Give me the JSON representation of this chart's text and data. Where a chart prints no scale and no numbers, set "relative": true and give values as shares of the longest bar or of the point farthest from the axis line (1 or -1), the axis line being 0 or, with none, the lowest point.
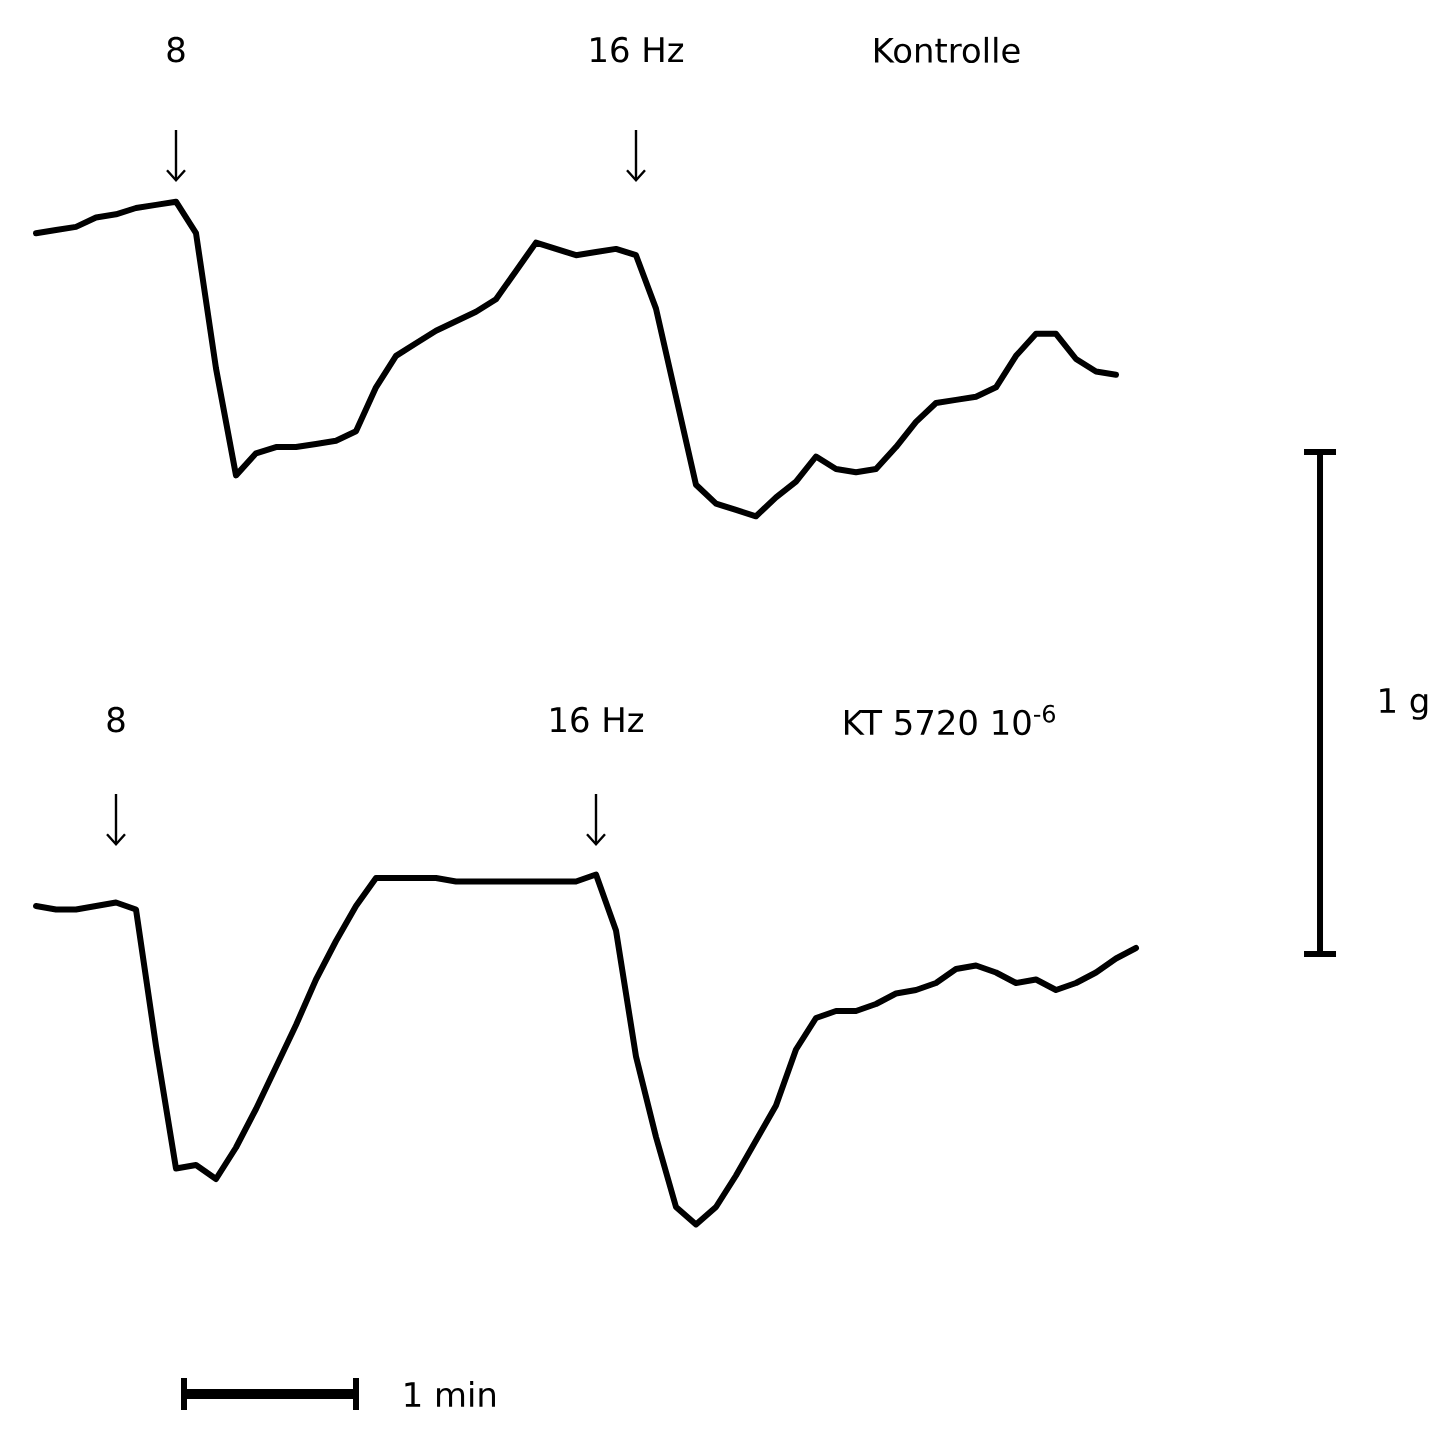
{
  "chart_data": [
    {
      "type": "line",
      "title": "Kontrolle",
      "relative": true,
      "color": "#000000",
      "categories": [
        null,
        null,
        null,
        null,
        null,
        null,
        null,
        null,
        null,
        null,
        null,
        null,
        null,
        null,
        null,
        null,
        null,
        null,
        null,
        null,
        null,
        null,
        null,
        null,
        null,
        null,
        null,
        null,
        null,
        null,
        null,
        null,
        null,
        null,
        null,
        null,
        null,
        null,
        null,
        null,
        null,
        null,
        null,
        null,
        null,
        null,
        null,
        null,
        null,
        null,
        null,
        null,
        null,
        null,
        null
      ],
      "values": [
        0.9,
        0.91,
        0.92,
        0.95,
        0.96,
        0.98,
        0.99,
        1.0,
        0.9,
        0.47,
        0.13,
        0.2,
        0.22,
        0.22,
        0.23,
        0.24,
        0.27,
        0.41,
        0.51,
        0.55,
        0.59,
        0.62,
        0.65,
        0.69,
        0.78,
        0.87,
        0.85,
        0.83,
        0.84,
        0.85,
        0.83,
        0.66,
        0.38,
        0.1,
        0.04,
        0.02,
        0,
        0.06,
        0.11,
        0.19,
        0.15,
        0.14,
        0.15,
        0.22,
        0.3,
        0.36,
        0.37,
        0.38,
        0.41,
        0.51,
        0.58,
        0.58,
        0.5,
        0.46,
        0.45
      ],
      "annotations": [
        "8",
        "16 Hz",
        "1 g"
      ]
    },
    {
      "type": "line",
      "title": "KT 5720 10$^{-6}$",
      "relative": true,
      "color": "#000000",
      "categories": [
        null,
        null,
        null,
        null,
        null,
        null,
        null,
        null,
        null,
        null,
        null,
        null,
        null,
        null,
        null,
        null,
        null,
        null,
        null,
        null,
        null,
        null,
        null,
        null,
        null,
        null,
        null,
        null,
        null,
        null,
        null,
        null,
        null,
        null,
        null,
        null,
        null,
        null,
        null,
        null,
        null,
        null,
        null,
        null,
        null,
        null,
        null,
        null,
        null,
        null,
        null,
        null,
        null,
        null,
        null,
        null
      ],
      "values": [
        0.91,
        0.9,
        0.9,
        0.91,
        0.92,
        0.9,
        0.51,
        0.16,
        0.17,
        0.13,
        0.22,
        0.33,
        0.45,
        0.57,
        0.7,
        0.81,
        0.91,
        0.99,
        0.99,
        0.99,
        0.99,
        0.98,
        0.98,
        0.98,
        0.98,
        0.98,
        0.98,
        0.98,
        1.0,
        0.84,
        0.48,
        0.25,
        0.05,
        0,
        0.05,
        0.14,
        0.24,
        0.34,
        0.5,
        0.59,
        0.61,
        0.61,
        0.63,
        0.66,
        0.67,
        0.69,
        0.73,
        0.74,
        0.72,
        0.69,
        0.7,
        0.67,
        0.69,
        0.72,
        0.76,
        0.79
      ],
      "annotations": [
        "8",
        "16 Hz",
        "1 min"
      ]
    }
  ]
}
